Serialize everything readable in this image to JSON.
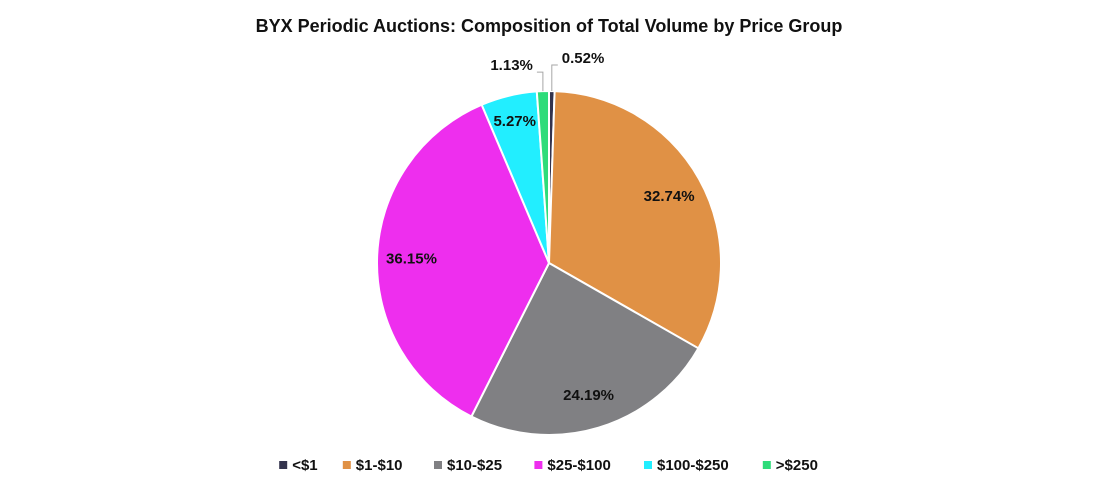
{
  "chart_data": {
    "type": "pie",
    "title": "BYX Periodic Auctions: Composition of Total Volume by Price Group",
    "categories": [
      "<$1",
      "$1-$10",
      "$10-$25",
      "$25-$100",
      "$100-$250",
      ">$250"
    ],
    "values": [
      0.52,
      32.74,
      24.19,
      36.15,
      5.27,
      1.13
    ],
    "labels": [
      "0.52%",
      "32.74%",
      "24.19%",
      "36.15%",
      "5.27%",
      "1.13%"
    ],
    "colors": [
      "#33334d",
      "#e09145",
      "#808083",
      "#ee2eee",
      "#22eeff",
      "#2edc7a"
    ],
    "start_angle": "12 o'clock",
    "direction": "clockwise",
    "legend_position": "bottom"
  }
}
